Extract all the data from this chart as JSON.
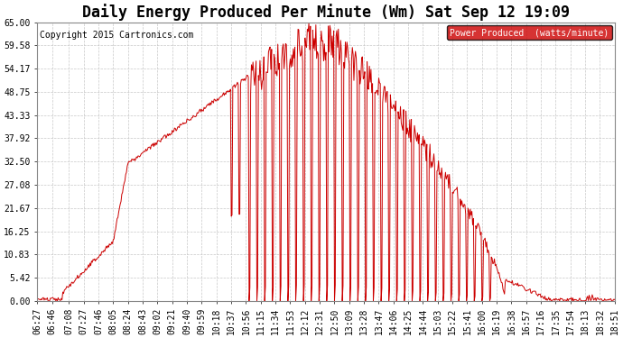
{
  "title": "Daily Energy Produced Per Minute (Wm) Sat Sep 12 19:09",
  "copyright": "Copyright 2015 Cartronics.com",
  "legend_label": "Power Produced  (watts/minute)",
  "legend_bg": "#cc0000",
  "legend_fg": "#ffffff",
  "line_color": "#cc0000",
  "bg_color": "#ffffff",
  "grid_color": "#c8c8c8",
  "ylim": [
    0,
    65.0
  ],
  "yticks": [
    0.0,
    5.42,
    10.83,
    16.25,
    21.67,
    27.08,
    32.5,
    37.92,
    43.33,
    48.75,
    54.17,
    59.58,
    65.0
  ],
  "xtick_labels": [
    "06:27",
    "06:46",
    "07:08",
    "07:27",
    "07:46",
    "08:05",
    "08:24",
    "08:43",
    "09:02",
    "09:21",
    "09:40",
    "09:59",
    "10:18",
    "10:37",
    "10:56",
    "11:15",
    "11:34",
    "11:53",
    "12:12",
    "12:31",
    "12:50",
    "13:09",
    "13:28",
    "13:47",
    "14:06",
    "14:25",
    "14:44",
    "15:03",
    "15:22",
    "15:41",
    "16:00",
    "16:19",
    "16:38",
    "16:57",
    "17:16",
    "17:35",
    "17:54",
    "18:13",
    "18:32",
    "18:51"
  ],
  "title_fontsize": 12,
  "copyright_fontsize": 7,
  "tick_fontsize": 7
}
